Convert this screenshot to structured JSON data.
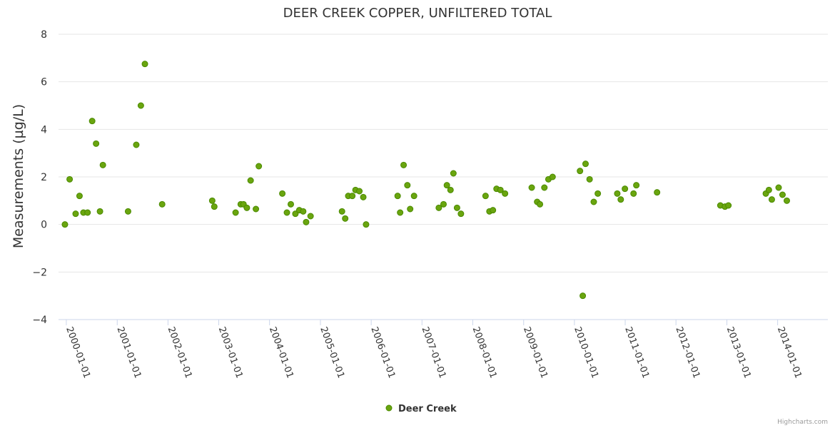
{
  "chart_data": {
    "type": "scatter",
    "title": "DEER CREEK COPPER, UNFILTERED TOTAL",
    "xlabel": "",
    "ylabel": "Measurements (µg/L)",
    "ylim": [
      -4,
      8
    ],
    "yticks": [
      "−4",
      "−2",
      "0",
      "2",
      "4",
      "6",
      "8"
    ],
    "yticks_values": [
      -4,
      -2,
      0,
      2,
      4,
      6,
      8
    ],
    "xticks": [
      "2000-01-01",
      "2001-01-01",
      "2002-01-01",
      "2003-01-01",
      "2004-01-01",
      "2005-01-01",
      "2006-01-01",
      "2007-01-01",
      "2008-01-01",
      "2009-01-01",
      "2010-01-01",
      "2011-01-01",
      "2012-01-01",
      "2013-01-01",
      "2014-01-01"
    ],
    "xlim": [
      "1999-11-06",
      "2014-12-28"
    ],
    "grid": true,
    "legend_position": "bottom-center",
    "colors": {
      "series": "#6aa50f",
      "series_stroke": "#4a8a00",
      "grid": "#e6e6e6",
      "axis": "#ccd6eb"
    },
    "series": [
      {
        "name": "Deer Creek",
        "points": [
          [
            "1999-12-22",
            0.0
          ],
          [
            "2000-01-25",
            1.9
          ],
          [
            "2000-03-08",
            0.45
          ],
          [
            "2000-04-05",
            1.2
          ],
          [
            "2000-05-03",
            0.5
          ],
          [
            "2000-06-02",
            0.5
          ],
          [
            "2000-07-05",
            4.35
          ],
          [
            "2000-08-02",
            3.4
          ],
          [
            "2000-08-30",
            0.55
          ],
          [
            "2000-09-20",
            2.5
          ],
          [
            "2001-03-20",
            0.55
          ],
          [
            "2001-05-18",
            3.35
          ],
          [
            "2001-06-20",
            5.0
          ],
          [
            "2001-07-19",
            6.75
          ],
          [
            "2001-11-20",
            0.85
          ],
          [
            "2002-11-15",
            1.0
          ],
          [
            "2002-11-30",
            0.75
          ],
          [
            "2003-05-02",
            0.5
          ],
          [
            "2003-06-08",
            0.85
          ],
          [
            "2003-06-28",
            0.85
          ],
          [
            "2003-07-22",
            0.7
          ],
          [
            "2003-08-18",
            1.85
          ],
          [
            "2003-09-25",
            0.65
          ],
          [
            "2003-10-16",
            2.45
          ],
          [
            "2004-04-02",
            1.3
          ],
          [
            "2004-05-05",
            0.5
          ],
          [
            "2004-06-02",
            0.85
          ],
          [
            "2004-07-05",
            0.45
          ],
          [
            "2004-08-02",
            0.6
          ],
          [
            "2004-08-30",
            0.55
          ],
          [
            "2004-09-20",
            0.1
          ],
          [
            "2004-10-22",
            0.35
          ],
          [
            "2005-06-05",
            0.55
          ],
          [
            "2005-06-28",
            0.25
          ],
          [
            "2005-07-20",
            1.2
          ],
          [
            "2005-08-18",
            1.2
          ],
          [
            "2005-09-10",
            1.45
          ],
          [
            "2005-10-08",
            1.4
          ],
          [
            "2005-11-05",
            1.15
          ],
          [
            "2005-11-25",
            0.0
          ],
          [
            "2006-07-10",
            1.2
          ],
          [
            "2006-07-28",
            0.5
          ],
          [
            "2006-08-22",
            2.5
          ],
          [
            "2006-09-18",
            1.65
          ],
          [
            "2006-10-08",
            0.65
          ],
          [
            "2006-11-05",
            1.2
          ],
          [
            "2007-05-02",
            0.7
          ],
          [
            "2007-06-05",
            0.85
          ],
          [
            "2007-06-29",
            1.65
          ],
          [
            "2007-07-25",
            1.45
          ],
          [
            "2007-08-15",
            2.15
          ],
          [
            "2007-09-10",
            0.7
          ],
          [
            "2007-10-08",
            0.45
          ],
          [
            "2008-04-02",
            1.2
          ],
          [
            "2008-04-30",
            0.55
          ],
          [
            "2008-05-25",
            0.6
          ],
          [
            "2008-06-20",
            1.5
          ],
          [
            "2008-07-18",
            1.45
          ],
          [
            "2008-08-20",
            1.3
          ],
          [
            "2009-02-28",
            1.55
          ],
          [
            "2009-04-08",
            0.95
          ],
          [
            "2009-04-28",
            0.85
          ],
          [
            "2009-05-30",
            1.55
          ],
          [
            "2009-06-28",
            1.9
          ],
          [
            "2009-07-28",
            2.0
          ],
          [
            "2010-02-10",
            2.25
          ],
          [
            "2010-03-02",
            -3.0
          ],
          [
            "2010-03-22",
            2.55
          ],
          [
            "2010-04-20",
            1.9
          ],
          [
            "2010-05-20",
            0.95
          ],
          [
            "2010-06-18",
            1.3
          ],
          [
            "2010-11-05",
            1.3
          ],
          [
            "2010-11-30",
            1.05
          ],
          [
            "2010-12-30",
            1.5
          ],
          [
            "2011-03-02",
            1.3
          ],
          [
            "2011-03-22",
            1.65
          ],
          [
            "2011-08-18",
            1.35
          ],
          [
            "2012-11-15",
            0.8
          ],
          [
            "2012-12-18",
            0.75
          ],
          [
            "2013-01-12",
            0.8
          ],
          [
            "2013-10-08",
            1.3
          ],
          [
            "2013-10-30",
            1.45
          ],
          [
            "2013-11-20",
            1.05
          ],
          [
            "2014-01-08",
            1.55
          ],
          [
            "2014-02-05",
            1.25
          ],
          [
            "2014-03-08",
            1.0
          ]
        ]
      }
    ]
  },
  "credits": "Highcharts.com"
}
